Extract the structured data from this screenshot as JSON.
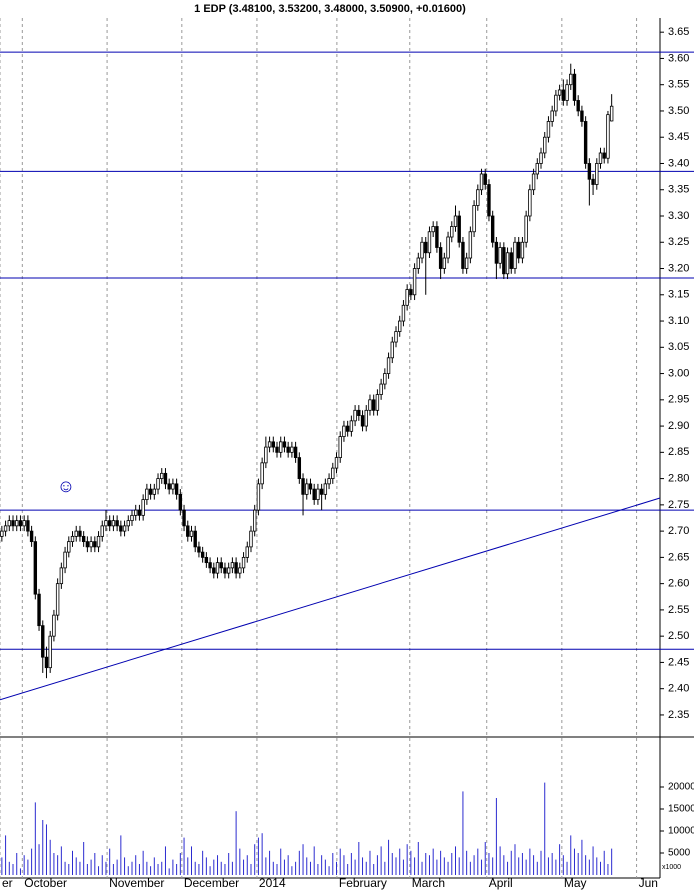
{
  "chart_data": {
    "type": "candlestick",
    "title": "1 EDP (3.48100, 3.53200, 3.48000, 3.50900, +0.01600)",
    "open": [
      2.69,
      2.7,
      2.71,
      2.72,
      2.71,
      2.72,
      2.71,
      2.72,
      2.7,
      2.68,
      2.58,
      2.52,
      2.46,
      2.44,
      2.5,
      2.54,
      2.6,
      2.63,
      2.66,
      2.68,
      2.69,
      2.7,
      2.69,
      2.68,
      2.67,
      2.68,
      2.67,
      2.69,
      2.71,
      2.72,
      2.71,
      2.72,
      2.71,
      2.7,
      2.71,
      2.72,
      2.73,
      2.74,
      2.73,
      2.76,
      2.78,
      2.77,
      2.78,
      2.8,
      2.81,
      2.79,
      2.78,
      2.79,
      2.77,
      2.74,
      2.71,
      2.69,
      2.7,
      2.67,
      2.66,
      2.65,
      2.64,
      2.63,
      2.62,
      2.64,
      2.63,
      2.62,
      2.63,
      2.64,
      2.62,
      2.63,
      2.65,
      2.67,
      2.7,
      2.74,
      2.79,
      2.83,
      2.86,
      2.87,
      2.86,
      2.85,
      2.87,
      2.86,
      2.85,
      2.86,
      2.84,
      2.8,
      2.77,
      2.79,
      2.78,
      2.76,
      2.78,
      2.77,
      2.79,
      2.8,
      2.82,
      2.84,
      2.88,
      2.9,
      2.89,
      2.91,
      2.93,
      2.92,
      2.9,
      2.93,
      2.95,
      2.93,
      2.96,
      2.98,
      3.0,
      3.03,
      3.06,
      3.08,
      3.1,
      3.13,
      3.16,
      3.15,
      3.2,
      3.22,
      3.25,
      3.23,
      3.27,
      3.28,
      3.24,
      3.2,
      3.22,
      3.26,
      3.28,
      3.3,
      3.25,
      3.2,
      3.22,
      3.27,
      3.32,
      3.35,
      3.38,
      3.36,
      3.3,
      3.25,
      3.21,
      3.24,
      3.19,
      3.23,
      3.2,
      3.25,
      3.22,
      3.25,
      3.3,
      3.35,
      3.38,
      3.4,
      3.42,
      3.45,
      3.48,
      3.5,
      3.53,
      3.54,
      3.52,
      3.55,
      3.57,
      3.52,
      3.5,
      3.48,
      3.4,
      3.37,
      3.36,
      3.4,
      3.42,
      3.41,
      3.481
    ],
    "high": [
      2.71,
      2.72,
      2.73,
      2.73,
      2.73,
      2.73,
      2.73,
      2.73,
      2.71,
      2.69,
      2.59,
      2.53,
      2.48,
      2.51,
      2.55,
      2.61,
      2.64,
      2.67,
      2.69,
      2.7,
      2.71,
      2.71,
      2.7,
      2.69,
      2.69,
      2.69,
      2.7,
      2.72,
      2.74,
      2.73,
      2.73,
      2.73,
      2.72,
      2.72,
      2.73,
      2.74,
      2.75,
      2.75,
      2.77,
      2.79,
      2.79,
      2.79,
      2.81,
      2.82,
      2.82,
      2.8,
      2.8,
      2.8,
      2.78,
      2.75,
      2.72,
      2.71,
      2.71,
      2.68,
      2.67,
      2.66,
      2.65,
      2.64,
      2.65,
      2.65,
      2.64,
      2.64,
      2.65,
      2.65,
      2.64,
      2.66,
      2.68,
      2.71,
      2.75,
      2.8,
      2.84,
      2.88,
      2.88,
      2.88,
      2.87,
      2.88,
      2.88,
      2.87,
      2.87,
      2.87,
      2.85,
      2.81,
      2.8,
      2.8,
      2.79,
      2.79,
      2.79,
      2.8,
      2.81,
      2.83,
      2.85,
      2.89,
      2.91,
      2.91,
      2.92,
      2.94,
      2.94,
      2.93,
      2.94,
      2.96,
      2.96,
      2.97,
      2.99,
      3.01,
      3.04,
      3.07,
      3.09,
      3.11,
      3.14,
      3.17,
      3.17,
      3.21,
      3.23,
      3.26,
      3.26,
      3.28,
      3.29,
      3.29,
      3.25,
      3.23,
      3.27,
      3.29,
      3.32,
      3.31,
      3.26,
      3.23,
      3.28,
      3.33,
      3.36,
      3.39,
      3.39,
      3.37,
      3.31,
      3.26,
      3.25,
      3.25,
      3.24,
      3.24,
      3.26,
      3.26,
      3.26,
      3.31,
      3.36,
      3.39,
      3.41,
      3.43,
      3.46,
      3.49,
      3.51,
      3.54,
      3.55,
      3.56,
      3.56,
      3.59,
      3.58,
      3.53,
      3.51,
      3.49,
      3.41,
      3.38,
      3.41,
      3.43,
      3.43,
      3.5,
      3.532
    ],
    "low": [
      2.68,
      2.69,
      2.7,
      2.7,
      2.7,
      2.7,
      2.7,
      2.69,
      2.67,
      2.57,
      2.51,
      2.43,
      2.42,
      2.43,
      2.49,
      2.53,
      2.59,
      2.62,
      2.65,
      2.67,
      2.68,
      2.68,
      2.67,
      2.66,
      2.66,
      2.66,
      2.66,
      2.68,
      2.7,
      2.7,
      2.7,
      2.7,
      2.69,
      2.69,
      2.7,
      2.71,
      2.72,
      2.72,
      2.72,
      2.75,
      2.76,
      2.76,
      2.77,
      2.79,
      2.78,
      2.77,
      2.77,
      2.76,
      2.73,
      2.7,
      2.68,
      2.68,
      2.66,
      2.65,
      2.64,
      2.63,
      2.62,
      2.61,
      2.61,
      2.62,
      2.61,
      2.61,
      2.62,
      2.61,
      2.61,
      2.62,
      2.64,
      2.66,
      2.69,
      2.73,
      2.78,
      2.82,
      2.85,
      2.85,
      2.84,
      2.84,
      2.85,
      2.84,
      2.84,
      2.83,
      2.79,
      2.73,
      2.76,
      2.77,
      2.75,
      2.75,
      2.74,
      2.76,
      2.78,
      2.79,
      2.81,
      2.83,
      2.87,
      2.88,
      2.88,
      2.9,
      2.91,
      2.89,
      2.89,
      2.92,
      2.92,
      2.92,
      2.95,
      2.97,
      2.99,
      3.02,
      3.05,
      3.07,
      3.09,
      3.12,
      3.14,
      3.14,
      3.19,
      3.21,
      3.15,
      3.22,
      3.26,
      3.23,
      3.18,
      3.19,
      3.21,
      3.25,
      3.27,
      3.24,
      3.19,
      3.19,
      3.21,
      3.26,
      3.31,
      3.34,
      3.35,
      3.29,
      3.24,
      3.18,
      3.2,
      3.18,
      3.18,
      3.19,
      3.19,
      3.21,
      3.21,
      3.24,
      3.29,
      3.34,
      3.37,
      3.39,
      3.41,
      3.44,
      3.47,
      3.49,
      3.52,
      3.51,
      3.51,
      3.54,
      3.51,
      3.49,
      3.47,
      3.39,
      3.32,
      3.34,
      3.35,
      3.39,
      3.4,
      3.4,
      3.48
    ],
    "close": [
      2.7,
      2.71,
      2.72,
      2.71,
      2.72,
      2.71,
      2.72,
      2.7,
      2.68,
      2.58,
      2.52,
      2.46,
      2.44,
      2.5,
      2.54,
      2.6,
      2.63,
      2.66,
      2.68,
      2.69,
      2.7,
      2.69,
      2.68,
      2.67,
      2.68,
      2.67,
      2.69,
      2.71,
      2.72,
      2.71,
      2.72,
      2.71,
      2.7,
      2.71,
      2.72,
      2.73,
      2.74,
      2.73,
      2.76,
      2.78,
      2.77,
      2.78,
      2.8,
      2.81,
      2.79,
      2.78,
      2.79,
      2.77,
      2.74,
      2.71,
      2.69,
      2.7,
      2.67,
      2.66,
      2.65,
      2.64,
      2.63,
      2.62,
      2.64,
      2.63,
      2.62,
      2.63,
      2.64,
      2.62,
      2.63,
      2.65,
      2.67,
      2.7,
      2.74,
      2.79,
      2.83,
      2.86,
      2.87,
      2.86,
      2.85,
      2.87,
      2.86,
      2.85,
      2.86,
      2.84,
      2.8,
      2.77,
      2.79,
      2.78,
      2.76,
      2.78,
      2.77,
      2.79,
      2.8,
      2.82,
      2.84,
      2.88,
      2.9,
      2.89,
      2.91,
      2.93,
      2.92,
      2.9,
      2.93,
      2.95,
      2.93,
      2.96,
      2.98,
      3.0,
      3.03,
      3.06,
      3.08,
      3.1,
      3.13,
      3.16,
      3.15,
      3.2,
      3.22,
      3.25,
      3.23,
      3.27,
      3.28,
      3.24,
      3.2,
      3.22,
      3.26,
      3.28,
      3.3,
      3.25,
      3.2,
      3.22,
      3.27,
      3.32,
      3.35,
      3.38,
      3.36,
      3.3,
      3.25,
      3.21,
      3.24,
      3.19,
      3.23,
      3.2,
      3.25,
      3.22,
      3.25,
      3.3,
      3.35,
      3.38,
      3.4,
      3.42,
      3.45,
      3.48,
      3.5,
      3.53,
      3.54,
      3.52,
      3.55,
      3.57,
      3.52,
      3.5,
      3.48,
      3.4,
      3.37,
      3.36,
      3.4,
      3.42,
      3.41,
      3.493,
      3.509
    ],
    "up_color": "#ffffff",
    "down_color": "#000000",
    "xlim": [
      -0.5,
      177
    ],
    "xticks": [
      {
        "value": -0.5,
        "label": "er"
      },
      {
        "value": 5.5,
        "label": "October"
      },
      {
        "value": 28.3,
        "label": "November"
      },
      {
        "value": 48.4,
        "label": "December"
      },
      {
        "value": 68.6,
        "label": "2014"
      },
      {
        "value": 90.1,
        "label": "February"
      },
      {
        "value": 109.7,
        "label": "March"
      },
      {
        "value": 130.4,
        "label": "April"
      },
      {
        "value": 150.6,
        "label": "May"
      },
      {
        "value": 170.7,
        "label": "Jun"
      }
    ],
    "ylim": [
      2.308,
      3.677
    ],
    "yticks": [
      2.35,
      {
        "value": 2.4,
        "label": "2.40"
      },
      2.45,
      {
        "value": 2.5,
        "label": "2.50"
      },
      2.55,
      {
        "value": 2.6,
        "label": "2.60"
      },
      2.65,
      {
        "value": 2.7,
        "label": "2.70"
      },
      2.75,
      {
        "value": 2.8,
        "label": "2.80"
      },
      2.85,
      {
        "value": 2.9,
        "label": "2.90"
      },
      2.95,
      {
        "value": 3.0,
        "label": "3.00"
      },
      3.05,
      {
        "value": 3.1,
        "label": "3.10"
      },
      3.15,
      {
        "value": 3.2,
        "label": "3.20"
      },
      3.25,
      {
        "value": 3.3,
        "label": "3.30"
      },
      3.35,
      {
        "value": 3.4,
        "label": "3.40"
      },
      3.45,
      {
        "value": 3.5,
        "label": "3.50"
      },
      3.55,
      {
        "value": 3.6,
        "label": "3.60"
      },
      3.65
    ],
    "hlines": [
      3.612,
      3.385,
      3.182,
      2.74,
      2.475
    ],
    "line_color": "#0000b0",
    "trendline": {
      "x": [
        -0.5,
        177
      ],
      "y": [
        2.379,
        2.763
      ]
    },
    "volume": {
      "values": [
        4000,
        9000,
        3000,
        2500,
        5000,
        1500,
        4500,
        3500,
        6000,
        16500,
        7000,
        12500,
        11500,
        8000,
        5000,
        4500,
        6500,
        3000,
        2500,
        5500,
        4000,
        3000,
        7500,
        2500,
        3500,
        5000,
        2000,
        4500,
        3000,
        6000,
        2500,
        3500,
        9000,
        4000,
        2000,
        3000,
        4500,
        2500,
        5500,
        3000,
        2000,
        4000,
        2500,
        3000,
        6500,
        1500,
        3500,
        2500,
        5000,
        8500,
        4000,
        6500,
        3000,
        2500,
        5500,
        4000,
        2000,
        3500,
        4500,
        3000,
        2500,
        5000,
        3000,
        14500,
        6000,
        3500,
        4500,
        2500,
        7000,
        8500,
        9500,
        4000,
        5500,
        3000,
        2500,
        6000,
        3500,
        4500,
        2000,
        3000,
        5500,
        7000,
        4000,
        3000,
        6500,
        2500,
        4500,
        3500,
        2000,
        5000,
        3000,
        6000,
        4500,
        2500,
        5000,
        3500,
        7500,
        4000,
        3000,
        5500,
        2500,
        4500,
        6500,
        3000,
        8000,
        5000,
        4000,
        6000,
        3500,
        7000,
        5500,
        4000,
        7500,
        3000,
        5000,
        4500,
        6000,
        3500,
        5500,
        4000,
        3000,
        5000,
        6500,
        4000,
        19000,
        5500,
        3000,
        4500,
        6000,
        3500,
        7500,
        5000,
        4000,
        17500,
        6500,
        4500,
        3000,
        5500,
        7000,
        4000,
        5000,
        3500,
        6000,
        4500,
        3000,
        5500,
        21000,
        4000,
        5000,
        3500,
        7000,
        4500,
        3000,
        9000,
        6000,
        5000,
        8000,
        4500,
        3500,
        6500,
        4000,
        3000,
        5500,
        2500,
        6000
      ],
      "color": "#2b2bd0",
      "ylim": [
        0,
        31364
      ],
      "yticks": [
        5000,
        10000,
        15000,
        20000
      ],
      "unit_label": "x1000"
    }
  }
}
